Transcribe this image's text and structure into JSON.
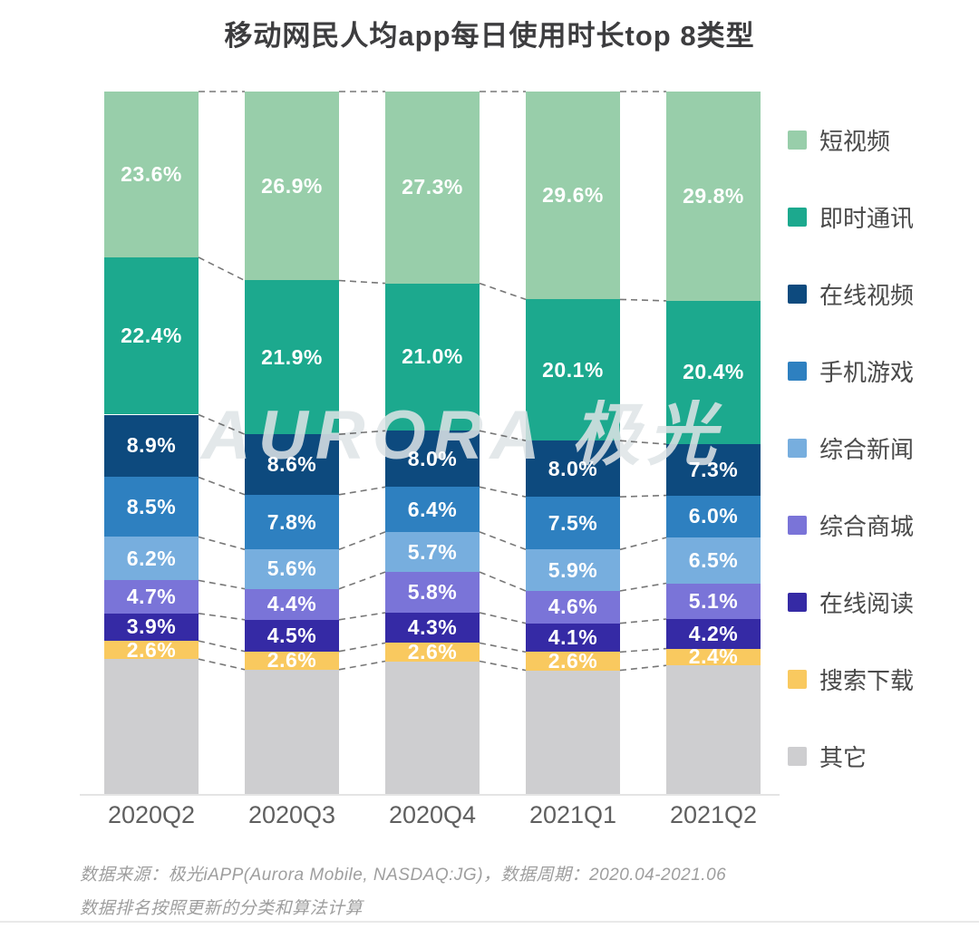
{
  "title": "移动网民人均app每日使用时长top 8类型",
  "watermark": "AURORA 极光",
  "footer": {
    "line1": "数据来源：极光iAPP(Aurora Mobile, NASDAQ:JG)，数据周期：2020.04-2021.06",
    "line2": "数据排名按照更新的分类和算法计算"
  },
  "chart_data": {
    "type": "bar",
    "stacked": true,
    "title": "移动网民人均app每日使用时长top 8类型",
    "categories": [
      "2020Q2",
      "2020Q3",
      "2020Q4",
      "2021Q1",
      "2021Q2"
    ],
    "series": [
      {
        "name": "短视频",
        "color": "#98CEAA",
        "values": [
          23.6,
          26.9,
          27.3,
          29.6,
          29.8
        ],
        "show_labels": true
      },
      {
        "name": "即时通讯",
        "color": "#1CA98E",
        "values": [
          22.4,
          21.9,
          21.0,
          20.1,
          20.4
        ],
        "show_labels": true
      },
      {
        "name": "在线视频",
        "color": "#0D4A7E",
        "values": [
          8.9,
          8.6,
          8.0,
          8.0,
          7.3
        ],
        "show_labels": true
      },
      {
        "name": "手机游戏",
        "color": "#2E80C0",
        "values": [
          8.5,
          7.8,
          6.4,
          7.5,
          6.0
        ],
        "show_labels": true
      },
      {
        "name": "综合新闻",
        "color": "#77AEDE",
        "values": [
          6.2,
          5.6,
          5.7,
          5.9,
          6.5
        ],
        "show_labels": true
      },
      {
        "name": "综合商城",
        "color": "#7A74D8",
        "values": [
          4.7,
          4.4,
          5.8,
          4.6,
          5.1
        ],
        "show_labels": true
      },
      {
        "name": "在线阅读",
        "color": "#352AA5",
        "values": [
          3.9,
          4.5,
          4.3,
          4.1,
          4.2
        ],
        "show_labels": true
      },
      {
        "name": "搜索下载",
        "color": "#F9C95F",
        "values": [
          2.6,
          2.6,
          2.6,
          2.6,
          2.4
        ],
        "show_labels": true
      },
      {
        "name": "其它",
        "color": "#CECED0",
        "values": [
          19.2,
          17.7,
          18.9,
          17.6,
          18.3
        ],
        "show_labels": false
      }
    ],
    "label_format": "percent",
    "value_labels_color": "#FFFFFF",
    "legend_position": "right",
    "legend_order": [
      "短视频",
      "即时通讯",
      "在线视频",
      "手机游戏",
      "综合新闻",
      "综合商城",
      "在线阅读",
      "搜索下载",
      "其它"
    ],
    "xlabel": "",
    "ylabel": "",
    "ylim": [
      0,
      100
    ],
    "grid": false,
    "connector_lines": "dashed between segment boundaries of adjacent bars"
  }
}
